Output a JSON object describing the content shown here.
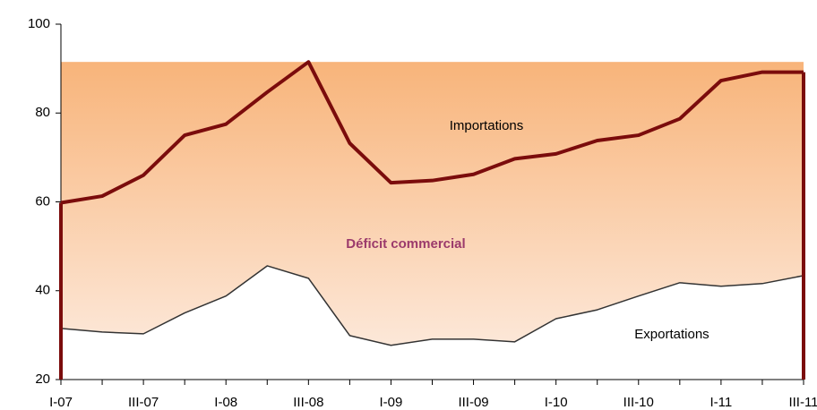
{
  "chart_data": {
    "type": "line",
    "categories": [
      "I-07",
      null,
      "III-07",
      null,
      "I-08",
      null,
      "III-08",
      null,
      "I-09",
      null,
      "III-09",
      null,
      "I-10",
      null,
      "III-10",
      null,
      "I-11",
      null,
      "III-11"
    ],
    "series": [
      {
        "name": "Importations",
        "color": "#7b0c0c",
        "values": [
          59.8,
          61.3,
          66,
          75,
          77.5,
          84.7,
          91.5,
          73.2,
          64.3,
          64.8,
          66.2,
          69.7,
          70.8,
          73.8,
          75,
          78.7,
          87.3,
          89.2,
          89.2
        ]
      },
      {
        "name": "Exportations",
        "color": "#333333",
        "values": [
          31.5,
          30.7,
          30.3,
          35,
          38.8,
          45.6,
          42.8,
          29.9,
          27.7,
          29.1,
          29.1,
          28.5,
          33.7,
          35.7,
          38.8,
          41.8,
          41,
          41.6,
          43.4
        ]
      }
    ],
    "annotations": [
      "Déficit commercial"
    ],
    "ylim": [
      20,
      100
    ],
    "yticks": [
      20,
      40,
      60,
      80,
      100
    ]
  }
}
